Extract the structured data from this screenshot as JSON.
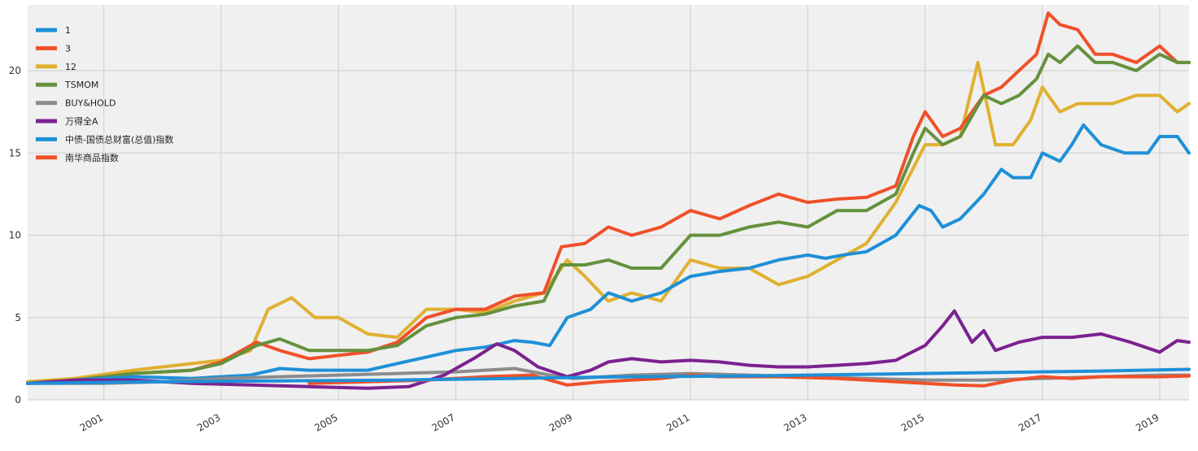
{
  "colors": {
    "plot_background": "#f0f0f0",
    "grid": "#d4d4d4"
  },
  "chart_data": {
    "type": "line",
    "title": "",
    "xlabel": "",
    "ylabel": "",
    "xlim": [
      1999.7,
      2019.5
    ],
    "ylim": [
      0,
      24
    ],
    "grid": true,
    "legend_position": "top-left",
    "x_ticks": [
      2001,
      2003,
      2005,
      2007,
      2009,
      2011,
      2013,
      2015,
      2017,
      2019
    ],
    "x_tick_labels": [
      "2001",
      "2003",
      "2005",
      "2007",
      "2009",
      "2011",
      "2013",
      "2015",
      "2017",
      "2019"
    ],
    "y_ticks": [
      0,
      5,
      10,
      15,
      20
    ],
    "y_tick_labels": [
      "0",
      "5",
      "10",
      "15",
      "20"
    ],
    "series": [
      {
        "name": "1",
        "color": "#1e90d8",
        "x": [
          1999.7,
          2000.5,
          2001.5,
          2002.5,
          2003.5,
          2004.0,
          2004.5,
          2005.5,
          2006.0,
          2006.5,
          2007.0,
          2007.5,
          2008.0,
          2008.3,
          2008.6,
          2008.9,
          2009.3,
          2009.6,
          2010.0,
          2010.5,
          2011.0,
          2011.5,
          2012.0,
          2012.5,
          2013.0,
          2013.3,
          2013.6,
          2014.0,
          2014.5,
          2014.9,
          2015.1,
          2015.3,
          2015.6,
          2016.0,
          2016.3,
          2016.5,
          2016.8,
          2017.0,
          2017.3,
          2017.5,
          2017.7,
          2018.0,
          2018.4,
          2018.8,
          2019.0,
          2019.3,
          2019.5
        ],
        "y": [
          1.0,
          1.2,
          1.4,
          1.3,
          1.5,
          1.9,
          1.8,
          1.8,
          2.2,
          2.6,
          3.0,
          3.2,
          3.6,
          3.5,
          3.3,
          5.0,
          5.5,
          6.5,
          6.0,
          6.5,
          7.5,
          7.8,
          8.0,
          8.5,
          8.8,
          8.6,
          8.8,
          9.0,
          10.0,
          11.8,
          11.5,
          10.5,
          11.0,
          12.5,
          14.0,
          13.5,
          13.5,
          15.0,
          14.5,
          15.5,
          16.7,
          15.5,
          15.0,
          15.0,
          16.0,
          16.0,
          15.0
        ]
      },
      {
        "name": "3",
        "color": "#f0502a",
        "x": [
          1999.7,
          2000.5,
          2001.5,
          2002.5,
          2003.0,
          2003.6,
          2004.0,
          2004.5,
          2005.0,
          2005.5,
          2006.0,
          2006.5,
          2007.0,
          2007.5,
          2008.0,
          2008.5,
          2008.8,
          2009.2,
          2009.6,
          2010.0,
          2010.5,
          2011.0,
          2011.5,
          2012.0,
          2012.5,
          2013.0,
          2013.5,
          2014.0,
          2014.5,
          2014.8,
          2015.0,
          2015.3,
          2015.6,
          2016.0,
          2016.3,
          2016.6,
          2016.9,
          2017.1,
          2017.3,
          2017.6,
          2017.9,
          2018.2,
          2018.6,
          2019.0,
          2019.3,
          2019.5
        ],
        "y": [
          1.0,
          1.2,
          1.6,
          1.8,
          2.3,
          3.5,
          3.0,
          2.5,
          2.7,
          2.9,
          3.5,
          5.0,
          5.5,
          5.5,
          6.3,
          6.5,
          9.3,
          9.5,
          10.5,
          10.0,
          10.5,
          11.5,
          11.0,
          11.8,
          12.5,
          12.0,
          12.2,
          12.3,
          13.0,
          16.0,
          17.5,
          16.0,
          16.5,
          18.5,
          19.0,
          20.0,
          21.0,
          23.5,
          22.8,
          22.5,
          21.0,
          21.0,
          20.5,
          21.5,
          20.5,
          20.5
        ]
      },
      {
        "name": "12",
        "color": "#e0b030",
        "x": [
          1999.7,
          2000.5,
          2001.5,
          2002.5,
          2003.0,
          2003.5,
          2003.8,
          2004.2,
          2004.6,
          2005.0,
          2005.5,
          2006.0,
          2006.5,
          2007.0,
          2007.5,
          2008.0,
          2008.5,
          2008.9,
          2009.2,
          2009.6,
          2010.0,
          2010.5,
          2011.0,
          2011.5,
          2012.0,
          2012.5,
          2013.0,
          2013.5,
          2014.0,
          2014.5,
          2015.0,
          2015.3,
          2015.6,
          2015.9,
          2016.2,
          2016.5,
          2016.8,
          2017.0,
          2017.3,
          2017.6,
          2017.9,
          2018.2,
          2018.6,
          2019.0,
          2019.3,
          2019.5
        ],
        "y": [
          1.1,
          1.3,
          1.8,
          2.2,
          2.4,
          3.0,
          5.5,
          6.2,
          5.0,
          5.0,
          4.0,
          3.8,
          5.5,
          5.5,
          5.3,
          6.0,
          6.5,
          8.5,
          7.5,
          6.0,
          6.5,
          6.0,
          8.5,
          8.0,
          8.0,
          7.0,
          7.5,
          8.5,
          9.5,
          12.0,
          15.5,
          15.5,
          16.0,
          20.5,
          15.5,
          15.5,
          17.0,
          19.0,
          17.5,
          18.0,
          18.0,
          18.0,
          18.5,
          18.5,
          17.5,
          18.0
        ]
      },
      {
        "name": "TSMOM",
        "color": "#65913d",
        "x": [
          1999.7,
          2000.5,
          2001.5,
          2002.5,
          2003.0,
          2003.6,
          2004.0,
          2004.5,
          2005.0,
          2005.5,
          2006.0,
          2006.5,
          2007.0,
          2007.5,
          2008.0,
          2008.5,
          2008.8,
          2009.2,
          2009.6,
          2010.0,
          2010.5,
          2011.0,
          2011.5,
          2012.0,
          2012.5,
          2013.0,
          2013.5,
          2014.0,
          2014.5,
          2014.8,
          2015.0,
          2015.3,
          2015.6,
          2016.0,
          2016.3,
          2016.6,
          2016.9,
          2017.1,
          2017.3,
          2017.6,
          2017.9,
          2018.2,
          2018.6,
          2019.0,
          2019.3,
          2019.5
        ],
        "y": [
          1.0,
          1.2,
          1.6,
          1.8,
          2.2,
          3.3,
          3.7,
          3.0,
          3.0,
          3.0,
          3.3,
          4.5,
          5.0,
          5.2,
          5.7,
          6.0,
          8.2,
          8.2,
          8.5,
          8.0,
          8.0,
          10.0,
          10.0,
          10.5,
          10.8,
          10.5,
          11.5,
          11.5,
          12.5,
          15.0,
          16.5,
          15.5,
          16.0,
          18.5,
          18.0,
          18.5,
          19.5,
          21.0,
          20.5,
          21.5,
          20.5,
          20.5,
          20.0,
          21.0,
          20.5,
          20.5
        ]
      },
      {
        "name": "BUY&HOLD",
        "color": "#8c8c8c",
        "x": [
          1999.7,
          2001.0,
          2002.0,
          2003.0,
          2004.0,
          2005.0,
          2006.0,
          2007.0,
          2008.0,
          2008.6,
          2009.0,
          2010.0,
          2011.0,
          2012.0,
          2013.0,
          2014.0,
          2015.0,
          2016.0,
          2017.0,
          2018.0,
          2019.0,
          2019.5
        ],
        "y": [
          1.0,
          1.0,
          1.1,
          1.3,
          1.4,
          1.5,
          1.6,
          1.7,
          1.9,
          1.5,
          1.3,
          1.5,
          1.6,
          1.5,
          1.4,
          1.3,
          1.2,
          1.2,
          1.3,
          1.4,
          1.5,
          1.5
        ]
      },
      {
        "name": "万得全A",
        "color": "#7b2290",
        "x": [
          1999.7,
          2000.5,
          2001.5,
          2002.5,
          2003.5,
          2004.5,
          2005.5,
          2006.2,
          2006.8,
          2007.3,
          2007.7,
          2008.0,
          2008.4,
          2008.9,
          2009.3,
          2009.6,
          2010.0,
          2010.5,
          2011.0,
          2011.5,
          2012.0,
          2012.5,
          2013.0,
          2013.5,
          2014.0,
          2014.5,
          2015.0,
          2015.3,
          2015.5,
          2015.8,
          2016.0,
          2016.2,
          2016.6,
          2017.0,
          2017.5,
          2018.0,
          2018.5,
          2019.0,
          2019.3,
          2019.5
        ],
        "y": [
          1.0,
          1.2,
          1.2,
          1.0,
          0.9,
          0.8,
          0.7,
          0.8,
          1.5,
          2.5,
          3.4,
          3.0,
          2.0,
          1.4,
          1.8,
          2.3,
          2.5,
          2.3,
          2.4,
          2.3,
          2.1,
          2.0,
          2.0,
          2.1,
          2.2,
          2.4,
          3.3,
          4.5,
          5.4,
          3.5,
          4.2,
          3.0,
          3.5,
          3.8,
          3.8,
          4.0,
          3.5,
          2.9,
          3.6,
          3.5
        ]
      },
      {
        "name": "中债-国债总财富(总值)指数",
        "color": "#1e90d8",
        "x": [
          1999.7,
          2002.0,
          2004.0,
          2006.0,
          2008.0,
          2010.0,
          2012.0,
          2014.0,
          2016.0,
          2018.0,
          2019.5
        ],
        "y": [
          1.0,
          1.1,
          1.15,
          1.2,
          1.3,
          1.4,
          1.45,
          1.55,
          1.65,
          1.75,
          1.85
        ]
      },
      {
        "name": "南华商品指数",
        "color": "#f0502a",
        "x": [
          2004.5,
          2005.5,
          2006.5,
          2007.5,
          2008.3,
          2008.9,
          2009.5,
          2010.5,
          2011.0,
          2011.5,
          2012.5,
          2013.5,
          2014.5,
          2015.5,
          2016.0,
          2016.5,
          2017.0,
          2017.5,
          2018.0,
          2018.5,
          2019.0,
          2019.5
        ],
        "y": [
          1.0,
          1.1,
          1.2,
          1.4,
          1.5,
          0.9,
          1.1,
          1.3,
          1.5,
          1.4,
          1.4,
          1.3,
          1.1,
          0.9,
          0.85,
          1.2,
          1.4,
          1.3,
          1.4,
          1.4,
          1.4,
          1.45
        ]
      }
    ]
  }
}
